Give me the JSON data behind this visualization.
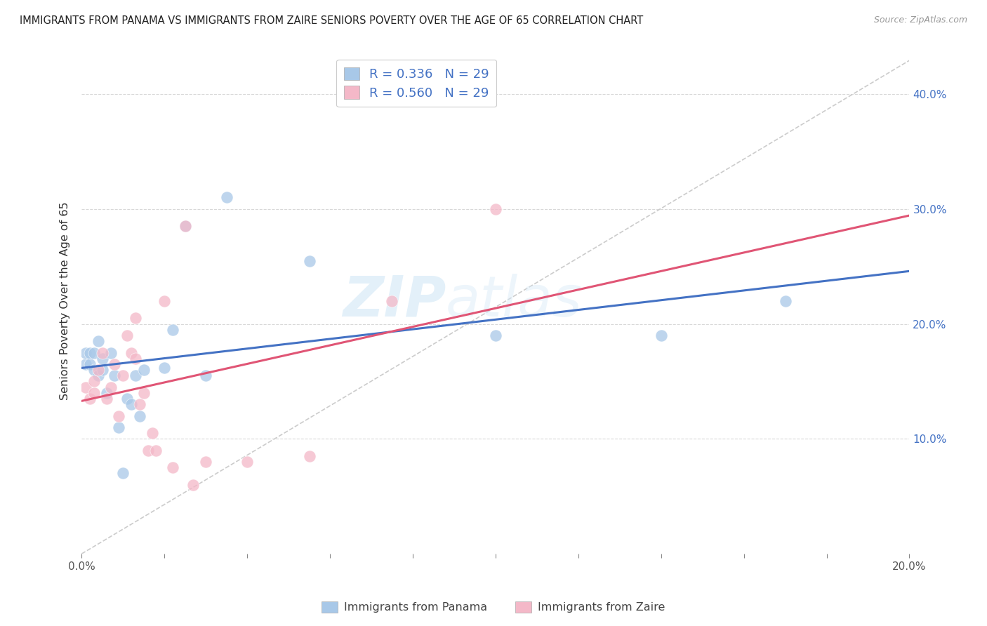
{
  "title": "IMMIGRANTS FROM PANAMA VS IMMIGRANTS FROM ZAIRE SENIORS POVERTY OVER THE AGE OF 65 CORRELATION CHART",
  "source": "Source: ZipAtlas.com",
  "ylabel": "Seniors Poverty Over the Age of 65",
  "xlim": [
    0.0,
    0.2
  ],
  "ylim": [
    0.0,
    0.44
  ],
  "xticks": [
    0.0,
    0.02,
    0.04,
    0.06,
    0.08,
    0.1,
    0.12,
    0.14,
    0.16,
    0.18,
    0.2
  ],
  "xticklabels": [
    "0.0%",
    "",
    "",
    "",
    "",
    "",
    "",
    "",
    "",
    "",
    "20.0%"
  ],
  "yticks": [
    0.0,
    0.1,
    0.2,
    0.3,
    0.4
  ],
  "yticklabels": [
    "",
    "10.0%",
    "20.0%",
    "30.0%",
    "40.0%"
  ],
  "panama_color": "#a8c8e8",
  "zaire_color": "#f4b8c8",
  "panama_line_color": "#4472c4",
  "zaire_line_color": "#e05575",
  "panama_R": 0.336,
  "panama_N": 29,
  "zaire_R": 0.56,
  "zaire_N": 29,
  "legend_label_panama": "Immigrants from Panama",
  "legend_label_zaire": "Immigrants from Zaire",
  "watermark_text": "ZIP",
  "watermark_text2": "atlas",
  "panama_x": [
    0.001,
    0.001,
    0.002,
    0.002,
    0.003,
    0.003,
    0.004,
    0.004,
    0.005,
    0.005,
    0.006,
    0.007,
    0.008,
    0.009,
    0.01,
    0.011,
    0.012,
    0.013,
    0.014,
    0.015,
    0.02,
    0.022,
    0.025,
    0.03,
    0.035,
    0.055,
    0.1,
    0.14,
    0.17
  ],
  "panama_y": [
    0.165,
    0.175,
    0.165,
    0.175,
    0.16,
    0.175,
    0.155,
    0.185,
    0.16,
    0.17,
    0.14,
    0.175,
    0.155,
    0.11,
    0.07,
    0.135,
    0.13,
    0.155,
    0.12,
    0.16,
    0.162,
    0.195,
    0.285,
    0.155,
    0.31,
    0.255,
    0.19,
    0.19,
    0.22
  ],
  "zaire_x": [
    0.001,
    0.002,
    0.003,
    0.003,
    0.004,
    0.005,
    0.006,
    0.007,
    0.008,
    0.009,
    0.01,
    0.011,
    0.012,
    0.013,
    0.013,
    0.014,
    0.015,
    0.016,
    0.017,
    0.018,
    0.02,
    0.022,
    0.025,
    0.027,
    0.03,
    0.04,
    0.055,
    0.075,
    0.1
  ],
  "zaire_y": [
    0.145,
    0.135,
    0.14,
    0.15,
    0.16,
    0.175,
    0.135,
    0.145,
    0.165,
    0.12,
    0.155,
    0.19,
    0.175,
    0.17,
    0.205,
    0.13,
    0.14,
    0.09,
    0.105,
    0.09,
    0.22,
    0.075,
    0.285,
    0.06,
    0.08,
    0.08,
    0.085,
    0.22,
    0.3
  ]
}
